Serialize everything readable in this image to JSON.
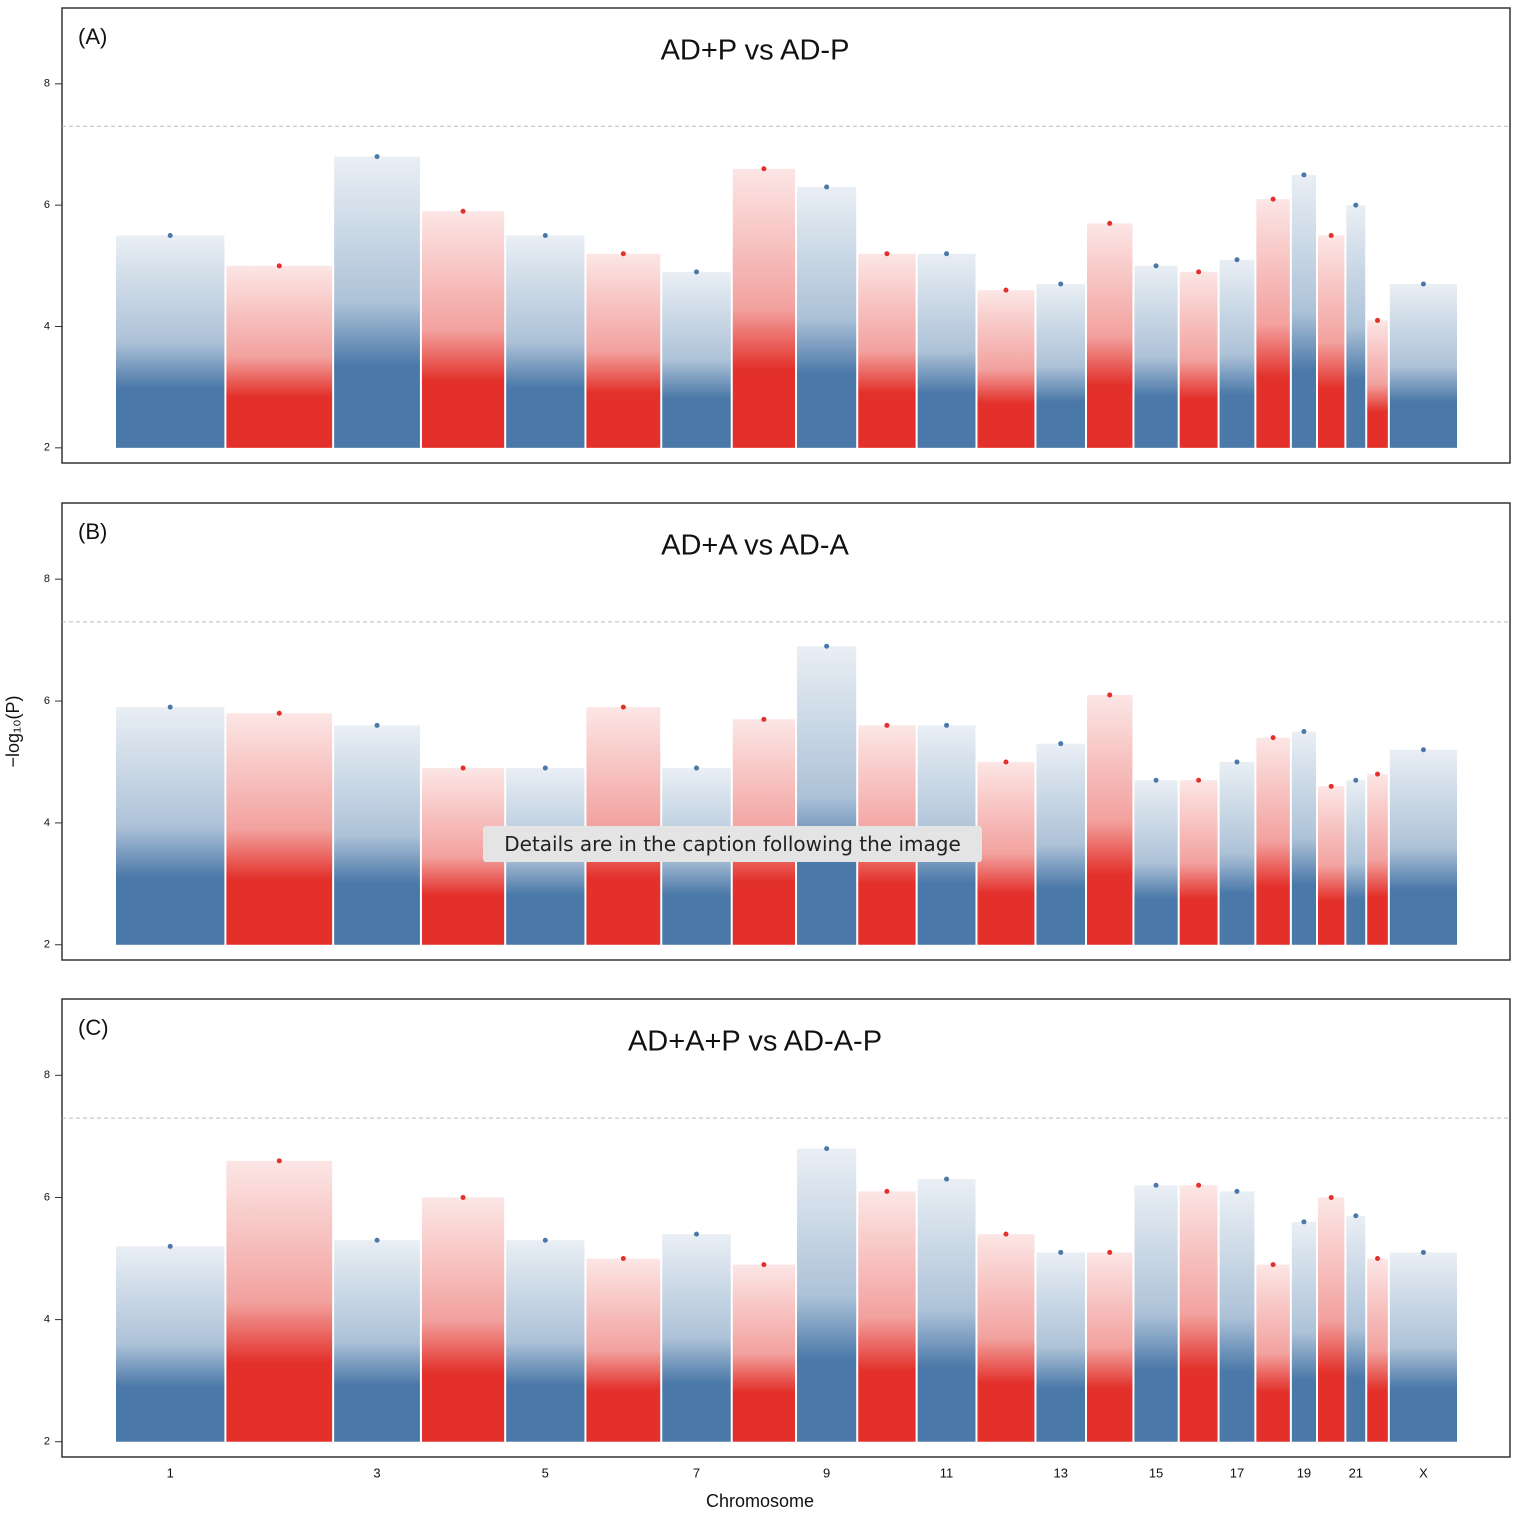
{
  "chart_data": [
    {
      "type": "manhattan",
      "label": "(A)",
      "title": "AD+P vs AD-P",
      "values": [
        5.5,
        5.0,
        6.8,
        5.9,
        5.5,
        5.2,
        4.9,
        6.6,
        6.3,
        5.2,
        5.2,
        4.6,
        4.7,
        5.7,
        5.0,
        4.9,
        5.1,
        6.1,
        6.5,
        5.5,
        6.0,
        4.1,
        4.7
      ],
      "colors": [
        "#4a78a8",
        "#e3302a"
      ],
      "threshold": 7.3,
      "ylim": [
        1.75,
        9.25
      ],
      "yticks": [
        2,
        4,
        6,
        8
      ]
    },
    {
      "type": "manhattan",
      "label": "(B)",
      "title": "AD+A vs AD-A",
      "ylabel": "−log₁₀(P)",
      "values": [
        5.9,
        5.8,
        5.6,
        4.9,
        4.9,
        5.9,
        4.9,
        5.7,
        6.9,
        5.6,
        5.6,
        5.0,
        5.3,
        6.1,
        4.7,
        4.7,
        5.0,
        5.4,
        5.5,
        4.6,
        4.7,
        4.8,
        5.2
      ],
      "colors": [
        "#4a78a8",
        "#e3302a"
      ],
      "threshold": 7.3,
      "ylim": [
        1.75,
        9.25
      ],
      "yticks": [
        2,
        4,
        6,
        8
      ]
    },
    {
      "type": "manhattan",
      "label": "(C)",
      "title": "AD+A+P vs AD-A-P",
      "xlabel": "Chromosome",
      "categories": [
        "1",
        null,
        "3",
        null,
        "5",
        null,
        "7",
        null,
        "9",
        null,
        "11",
        null,
        "13",
        null,
        "15",
        null,
        "17",
        null,
        "19",
        null,
        "21",
        null,
        "X"
      ],
      "values": [
        5.2,
        6.6,
        5.3,
        6.0,
        5.3,
        5.0,
        5.4,
        4.9,
        6.8,
        6.1,
        6.3,
        5.4,
        5.1,
        5.1,
        6.2,
        6.2,
        6.1,
        4.9,
        5.6,
        6.0,
        5.7,
        5.0,
        5.1
      ],
      "colors": [
        "#4a78a8",
        "#e3302a"
      ],
      "threshold": 7.3,
      "ylim": [
        1.75,
        9.25
      ],
      "yticks": [
        2,
        4,
        6,
        8
      ]
    }
  ],
  "overlay": "Details are in the caption following the image"
}
